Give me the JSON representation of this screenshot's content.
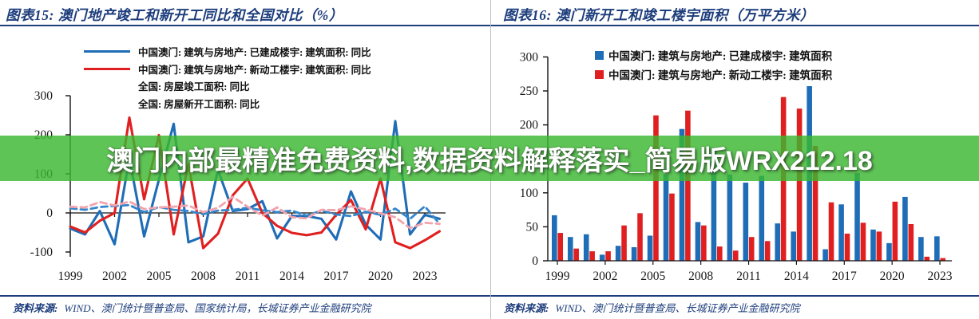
{
  "banner": {
    "text": "澳门内部最精准免费资料,数据资料解释落实_简易版WRX212.18",
    "bg_color": "#5ec455",
    "text_color": "#ffffff"
  },
  "panels": [
    {
      "title": "图表15:  澳门地产竣工和新开工同比和全国对比（%）",
      "source_label": "资料来源:",
      "source_text": "WIND、澳门统计暨普查局、国家统计局，长城证券产业金融研究院"
    },
    {
      "title": "图表16:  澳门新开工和竣工楼宇面积（万平方米）",
      "source_label": "资料来源:",
      "source_text": "WIND、澳门统计暨普查局、长城证券产业金融研究院"
    }
  ],
  "chart_data": [
    {
      "type": "line",
      "title": "澳门地产竣工和新开工同比和全国对比（%）",
      "x": [
        1999,
        2000,
        2001,
        2002,
        2003,
        2004,
        2005,
        2006,
        2007,
        2008,
        2009,
        2010,
        2011,
        2012,
        2013,
        2014,
        2015,
        2016,
        2017,
        2018,
        2019,
        2020,
        2021,
        2022,
        2023,
        2024
      ],
      "series": [
        {
          "name": "中国澳门: 建筑与房地产: 已建成楼宇: 建筑面积: 同比",
          "style": "solid",
          "color": "#1f6db6",
          "values": [
            -40,
            -55,
            5,
            -80,
            140,
            -60,
            85,
            228,
            -75,
            -60,
            110,
            5,
            10,
            30,
            -65,
            -8,
            -8,
            -15,
            -68,
            55,
            -30,
            -68,
            235,
            -55,
            -5,
            -15
          ]
        },
        {
          "name": "中国澳门: 建筑与房地产: 新动工楼宇: 建筑面积: 同比",
          "style": "solid",
          "color": "#e02020",
          "values": [
            -35,
            -50,
            -20,
            0,
            244,
            35,
            199,
            -55,
            125,
            -90,
            -53,
            45,
            88,
            0,
            -33,
            -51,
            -57,
            -50,
            -5,
            33,
            -42,
            88,
            -75,
            -90,
            -70,
            -47
          ]
        },
        {
          "name": "全国: 房屋竣工面积: 同比",
          "style": "dashed",
          "color": "#3486cc",
          "values": [
            12,
            8,
            15,
            18,
            20,
            2,
            15,
            8,
            5,
            -3,
            6,
            8,
            13,
            7,
            2,
            6,
            -7,
            6,
            -4,
            -8,
            3,
            -5,
            11,
            -15,
            17,
            -28
          ]
        },
        {
          "name": "全国: 房屋新开工面积: 同比",
          "style": "dashed",
          "color": "#f2a3ad",
          "values": [
            16,
            14,
            28,
            19,
            29,
            10,
            14,
            16,
            19,
            2,
            13,
            41,
            16,
            -7,
            14,
            -11,
            -14,
            8,
            7,
            17,
            9,
            -1,
            -11,
            -39,
            -25,
            -28
          ]
        }
      ],
      "ylim": [
        -100,
        300
      ],
      "yticks": [
        300,
        200,
        100,
        0,
        -100
      ],
      "xticks": [
        1999,
        2002,
        2005,
        2008,
        2011,
        2014,
        2017,
        2020,
        2023
      ],
      "grid": false,
      "legend_position": "top-left"
    },
    {
      "type": "bar",
      "title": "澳门新开工和竣工楼宇面积（万平方米）",
      "categories": [
        1999,
        2000,
        2001,
        2002,
        2003,
        2004,
        2005,
        2006,
        2007,
        2008,
        2009,
        2010,
        2011,
        2012,
        2013,
        2014,
        2015,
        2016,
        2017,
        2018,
        2019,
        2020,
        2021,
        2022,
        2023
      ],
      "series": [
        {
          "name": "中国澳门: 建筑与房地产: 已建成楼宇: 建筑面积",
          "color": "#1f6db6",
          "values": [
            67,
            35,
            39,
            9,
            22,
            20,
            37,
            127,
            194,
            57,
            166,
            127,
            115,
            125,
            55,
            43,
            257,
            17,
            83,
            129,
            46,
            26,
            94,
            35,
            36
          ]
        },
        {
          "name": "中国澳门: 建筑与房地产: 新动工楼宇: 建筑面积",
          "color": "#e02020",
          "values": [
            41,
            18,
            14,
            14,
            52,
            70,
            214,
            99,
            221,
            52,
            21,
            15,
            35,
            29,
            241,
            224,
            169,
            86,
            40,
            56,
            43,
            87,
            54,
            6,
            4
          ]
        }
      ],
      "ylim": [
        0,
        300
      ],
      "yticks": [
        0,
        50,
        100,
        150,
        200,
        250,
        300
      ],
      "xticks": [
        1999,
        2002,
        2005,
        2008,
        2011,
        2014,
        2017,
        2020,
        2023
      ],
      "grid": false,
      "legend_position": "top"
    }
  ]
}
